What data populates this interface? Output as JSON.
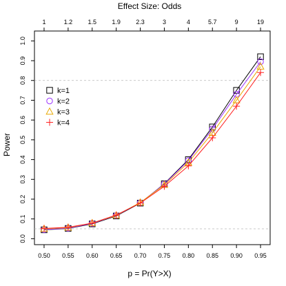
{
  "chart_data": {
    "type": "line",
    "xlabel": "p = Pr(Y>X)",
    "ylabel": "Power",
    "top_axis_title": "Effect Size: Odds",
    "x": [
      0.5,
      0.55,
      0.6,
      0.65,
      0.7,
      0.75,
      0.8,
      0.85,
      0.9,
      0.95
    ],
    "x_tick_labels": [
      "0.50",
      "0.55",
      "0.60",
      "0.65",
      "0.70",
      "0.75",
      "0.80",
      "0.85",
      "0.90",
      "0.95"
    ],
    "top_tick_labels": [
      "1",
      "1.2",
      "1.5",
      "1.9",
      "2.3",
      "3",
      "4",
      "5.7",
      "9",
      "19"
    ],
    "y_ticks": [
      0.0,
      0.1,
      0.2,
      0.3,
      0.4,
      0.5,
      0.6,
      0.7,
      0.8,
      0.9,
      1.0
    ],
    "y_tick_labels": [
      "0.0",
      "0.1",
      "0.2",
      "0.3",
      "0.4",
      "0.5",
      "0.6",
      "0.7",
      "0.8",
      "0.9",
      "1.0"
    ],
    "xlim": [
      0.48,
      0.97
    ],
    "ylim": [
      -0.03,
      1.05
    ],
    "reference_lines": [
      0.05,
      0.8
    ],
    "grid": false,
    "legend_position": "top-left",
    "series": [
      {
        "name": "k=1",
        "marker": "square",
        "color": "#000000",
        "values": [
          0.045,
          0.052,
          0.075,
          0.115,
          0.18,
          0.278,
          0.4,
          0.565,
          0.75,
          0.92
        ]
      },
      {
        "name": "k=2",
        "marker": "circle",
        "color": "#9b30ff",
        "values": [
          0.046,
          0.053,
          0.077,
          0.117,
          0.182,
          0.276,
          0.395,
          0.555,
          0.73,
          0.895
        ]
      },
      {
        "name": "k=3",
        "marker": "triangle",
        "color": "#e8a800",
        "values": [
          0.05,
          0.056,
          0.079,
          0.118,
          0.183,
          0.272,
          0.385,
          0.535,
          0.7,
          0.87
        ]
      },
      {
        "name": "k=4",
        "marker": "plus",
        "color": "#ff2020",
        "values": [
          0.052,
          0.058,
          0.079,
          0.12,
          0.18,
          0.265,
          0.368,
          0.51,
          0.67,
          0.84
        ]
      }
    ]
  }
}
